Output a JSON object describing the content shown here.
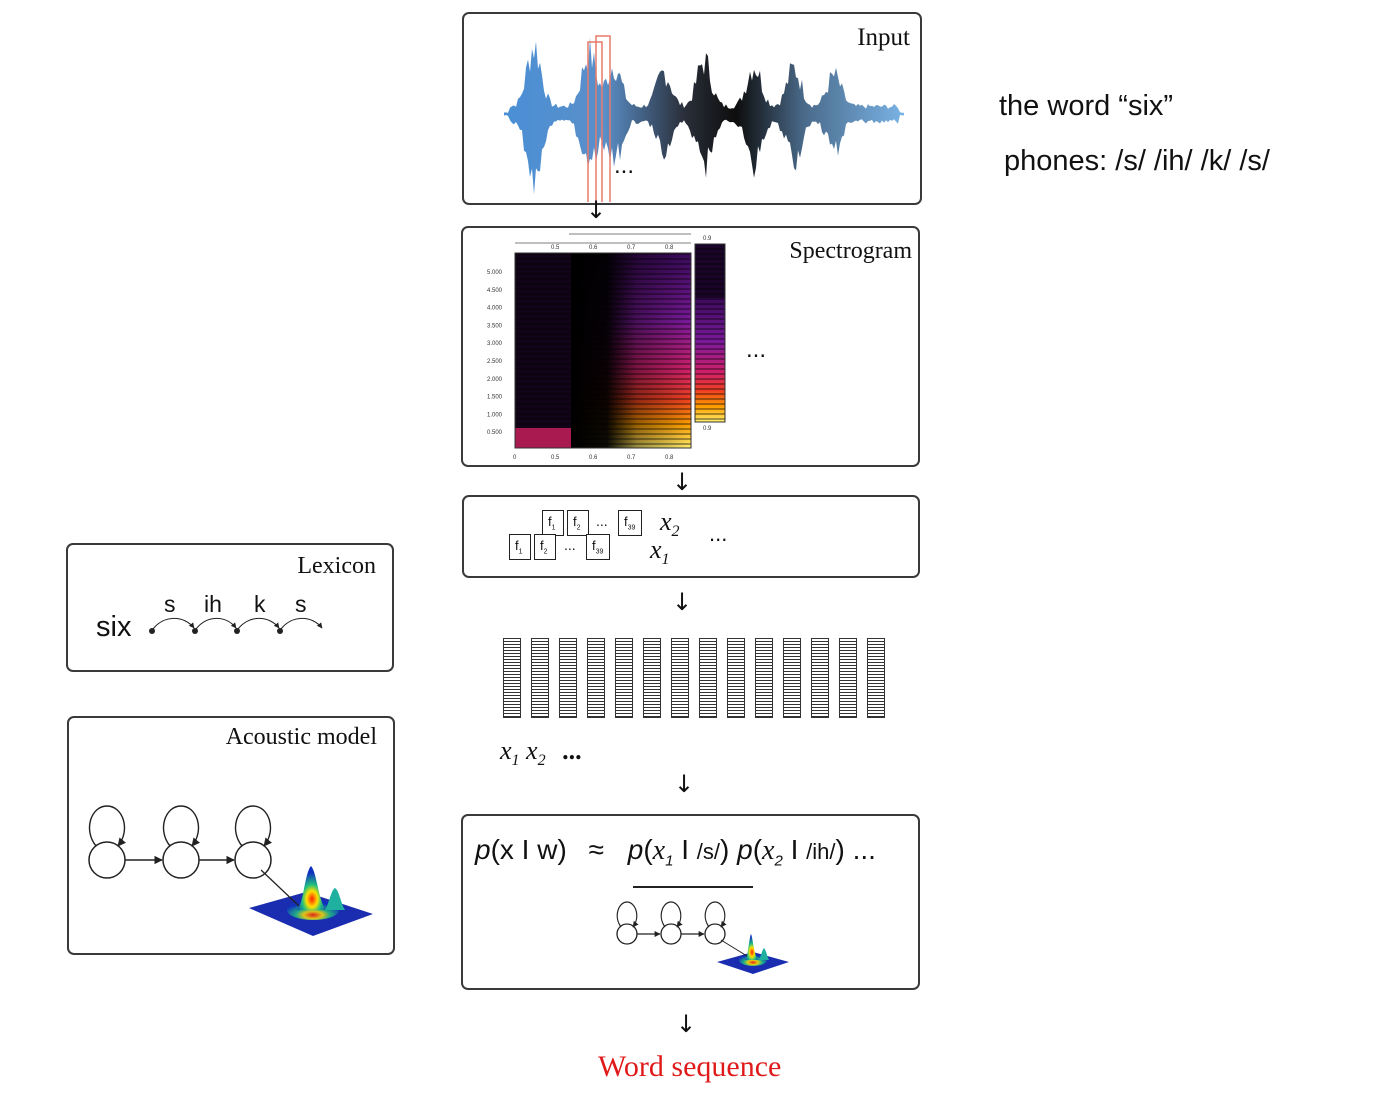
{
  "input_box": {
    "title": "Input",
    "ellipsis": "..."
  },
  "spectrogram_box": {
    "title": "Spectrogram",
    "ellipsis": "...",
    "y_ticks": [
      "5.000",
      "4.500",
      "4.000",
      "3.500",
      "3.000",
      "2.500",
      "2.000",
      "1.500",
      "1.000",
      "0.500"
    ],
    "x_ticks": [
      "0",
      "0.5",
      "0.6",
      "0.7",
      "0.8"
    ],
    "top_ticks": [
      "0.5",
      "0.6",
      "0.7",
      "0.8"
    ],
    "second_top_tick": "0.9",
    "second_bottom_tick": "0.9"
  },
  "features_box": {
    "back_frame": {
      "f1": "f",
      "s1": "1",
      "f2": "f",
      "s2": "2",
      "dots": "...",
      "f39": "f",
      "s39": "39"
    },
    "front_frame": {
      "f1": "f",
      "s1": "1",
      "f2": "f",
      "s2": "2",
      "dots": "...",
      "f39": "f",
      "s39": "39"
    },
    "x2": {
      "var": "x",
      "sub": "2"
    },
    "x1": {
      "var": "x",
      "sub": "1"
    },
    "ellipsis": "..."
  },
  "vector_sequence": {
    "count": 14,
    "x1": {
      "var": "x",
      "sub": "1"
    },
    "x2": {
      "var": "x",
      "sub": "2"
    },
    "ellipsis": "..."
  },
  "likelihood_box": {
    "lhs_p": "p",
    "lhs_args": "(x I w)",
    "approx": "≈",
    "t1_p": "p",
    "t1_open": "(",
    "t1_var": "x",
    "t1_sub": "1",
    "t1_bar": " I ",
    "t1_phone": "/s/",
    "t1_close": ")",
    "t2_p": "p",
    "t2_open": "(",
    "t2_var": "x",
    "t2_sub": "2",
    "t2_bar": " I ",
    "t2_phone": "/ih/",
    "t2_close": ")",
    "trail": " ..."
  },
  "output": {
    "label": "Word sequence",
    "color": "#e01a1a"
  },
  "annotation": {
    "word": "the word “six”",
    "phones": "phones: /s/ /ih/ /k/ /s/"
  },
  "lexicon_box": {
    "title": "Lexicon",
    "word": "six",
    "phones": [
      "s",
      "ih",
      "k",
      "s"
    ]
  },
  "acoustic_model_box": {
    "title": "Acoustic model"
  },
  "flow_arrows": [
    "↓",
    "↓",
    "↓",
    "↓",
    "↓"
  ]
}
